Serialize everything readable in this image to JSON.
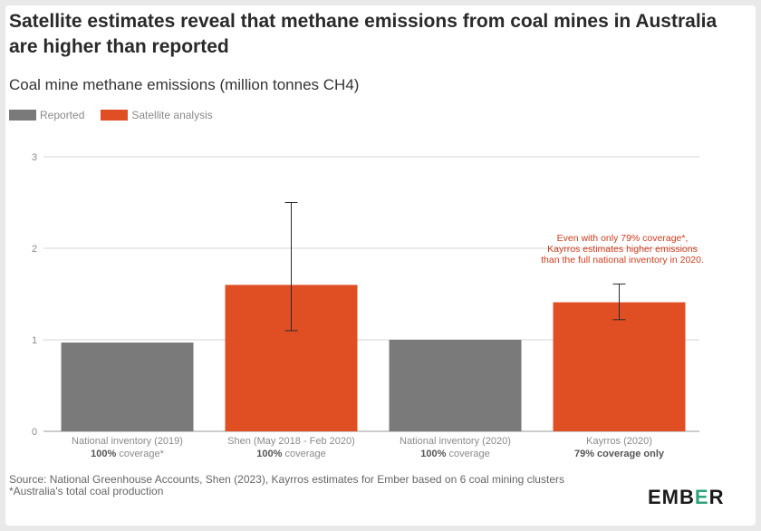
{
  "title": "Satellite estimates reveal that methane emissions from coal mines in Australia are higher than reported",
  "subtitle": "Coal mine methane emissions (million tonnes CH4)",
  "legend": [
    {
      "label": "Reported",
      "color": "#7a7a7a"
    },
    {
      "label": "Satellite analysis",
      "color": "#e04e24"
    }
  ],
  "annotation": [
    "Even with only 79% coverage*,",
    "Kayrros estimates higher emissions",
    "than the full national inventory in 2020."
  ],
  "annotation_color": "#d03b1c",
  "source": {
    "line1": "Source: National Greenhouse Accounts, Shen (2023), Kayrros estimates for Ember based on 6 coal mining clusters",
    "line2": "*Australia's total coal production"
  },
  "logo": {
    "prefix": "EMB",
    "accent": "E",
    "suffix": "R"
  },
  "chart_data": {
    "type": "bar",
    "title": "Satellite estimates reveal that methane emissions from coal mines in Australia are higher than reported",
    "ylabel": "Coal mine methane emissions (million tonnes CH4)",
    "ylim": [
      0,
      3
    ],
    "yticks": [
      0,
      1,
      2,
      3
    ],
    "grid": true,
    "legend_position": "top-left",
    "categories": [
      {
        "label": "National inventory (2019)",
        "sub_bold": "100%",
        "sub_rest": " coverage*"
      },
      {
        "label": "Shen (May 2018 - Feb 2020)",
        "sub_bold": "100%",
        "sub_rest": " coverage"
      },
      {
        "label": "National inventory (2020)",
        "sub_bold": "100%",
        "sub_rest": " coverage"
      },
      {
        "label": "Kayrros (2020)",
        "sub_bold": "79% coverage only",
        "sub_rest": ""
      }
    ],
    "values": [
      0.97,
      1.6,
      1.0,
      1.41
    ],
    "series_type": [
      "Reported",
      "Satellite analysis",
      "Reported",
      "Satellite analysis"
    ],
    "error_bars": [
      null,
      [
        1.1,
        2.5
      ],
      null,
      [
        1.22,
        1.61
      ]
    ]
  }
}
